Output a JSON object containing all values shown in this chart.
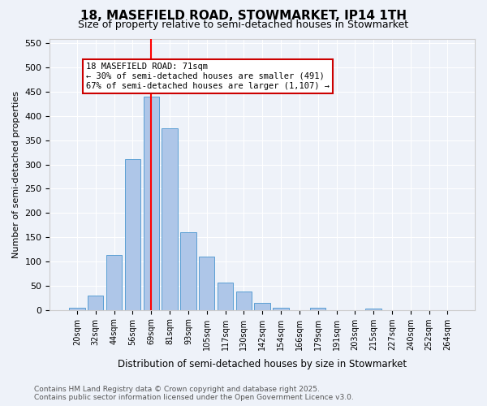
{
  "title": "18, MASEFIELD ROAD, STOWMARKET, IP14 1TH",
  "subtitle": "Size of property relative to semi-detached houses in Stowmarket",
  "xlabel": "Distribution of semi-detached houses by size in Stowmarket",
  "ylabel": "Number of semi-detached properties",
  "bin_labels": [
    "20sqm",
    "32sqm",
    "44sqm",
    "56sqm",
    "69sqm",
    "81sqm",
    "93sqm",
    "105sqm",
    "117sqm",
    "130sqm",
    "142sqm",
    "154sqm",
    "166sqm",
    "179sqm",
    "191sqm",
    "203sqm",
    "215sqm",
    "227sqm",
    "240sqm",
    "252sqm",
    "264sqm"
  ],
  "bar_values": [
    5,
    30,
    113,
    311,
    440,
    375,
    160,
    110,
    57,
    38,
    15,
    5,
    0,
    5,
    0,
    0,
    3,
    0,
    0,
    0,
    0
  ],
  "bar_color": "#aec6e8",
  "bar_edge_color": "#5a9fd4",
  "vline_x": 4.0,
  "annotation_title": "18 MASEFIELD ROAD: 71sqm",
  "annotation_line1": "← 30% of semi-detached houses are smaller (491)",
  "annotation_line2": "67% of semi-detached houses are larger (1,107) →",
  "annotation_box_color": "#cc0000",
  "ylim": [
    0,
    560
  ],
  "yticks": [
    0,
    50,
    100,
    150,
    200,
    250,
    300,
    350,
    400,
    450,
    500,
    550
  ],
  "footer_line1": "Contains HM Land Registry data © Crown copyright and database right 2025.",
  "footer_line2": "Contains public sector information licensed under the Open Government Licence v3.0.",
  "bg_color": "#eef2f9",
  "plot_bg_color": "#eef2f9",
  "grid_color": "#ffffff"
}
